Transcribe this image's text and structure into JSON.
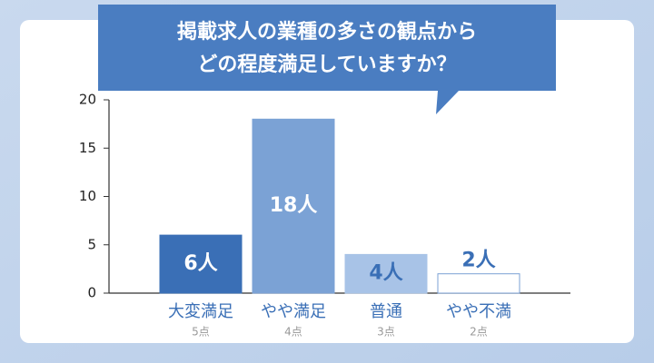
{
  "chart_data": {
    "type": "bar",
    "title": [
      "掲載求人の業種の多さの観点から",
      "どの程度満足していますか？"
    ],
    "categories": [
      "大変満足",
      "やや満足",
      "普通",
      "やや不満"
    ],
    "sublabels": [
      "5点",
      "4点",
      "3点",
      "2点"
    ],
    "values": [
      6,
      18,
      4,
      2
    ],
    "value_labels": [
      "6人",
      "18人",
      "4人",
      "2人"
    ],
    "colors": [
      "#3a6fb6",
      "#7ba2d5",
      "#a8c3e7",
      "#ffffff"
    ],
    "ylim": [
      0,
      20
    ],
    "yticks": [
      0,
      5,
      10,
      15,
      20
    ],
    "grid": false
  }
}
